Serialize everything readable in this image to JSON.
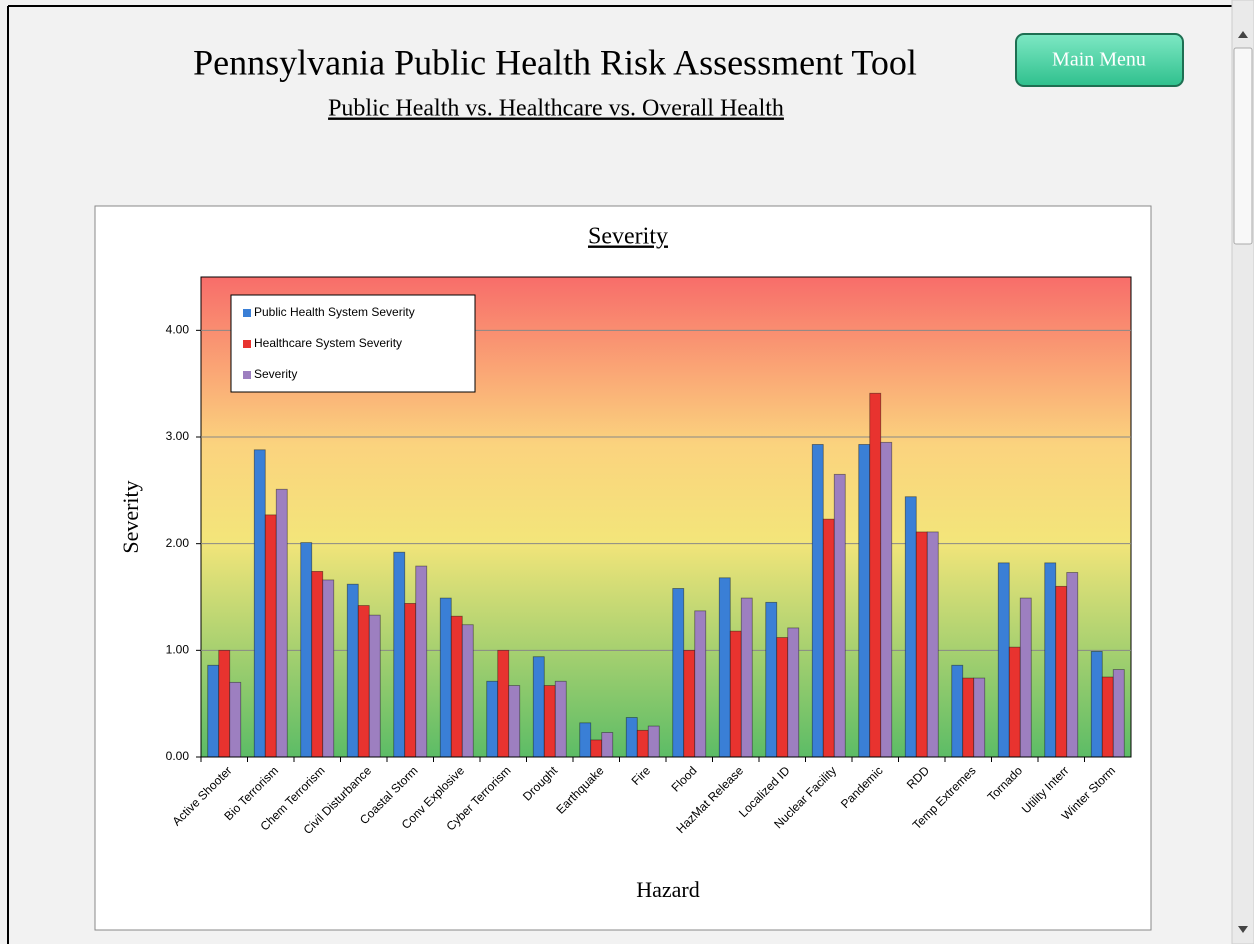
{
  "header": {
    "title": "Pennsylvania Public Health Risk Assessment Tool",
    "subtitle": "Public Health vs. Healthcare vs. Overall Health",
    "button": "Main Menu"
  },
  "chart_data": {
    "type": "bar",
    "title": "Severity",
    "x_label": "Hazard",
    "y_label": "Severity",
    "categories": [
      "Active Shooter",
      "Bio Terrorism",
      "Chem Terrorism",
      "Civil Disturbance",
      "Coastal Storm",
      "Conv Explosive",
      "Cyber Terrorism",
      "Drought",
      "Earthquake",
      "Fire",
      "Flood",
      "HazMat Release",
      "Localized ID",
      "Nuclear Facility",
      "Pandemic",
      "RDD",
      "Temp Extremes",
      "Tornado",
      "Utility Interr",
      "Winter Storm"
    ],
    "series": [
      {
        "name": "Public Health System Severity",
        "color": "#3a7fd6",
        "values": [
          0.86,
          2.88,
          2.01,
          1.62,
          1.92,
          1.49,
          0.71,
          0.94,
          0.32,
          0.37,
          1.58,
          1.68,
          1.45,
          2.93,
          2.93,
          2.44,
          0.86,
          1.82,
          1.82,
          0.99
        ]
      },
      {
        "name": "Healthcare System Severity",
        "color": "#e8332f",
        "values": [
          1.0,
          2.27,
          1.74,
          1.42,
          1.44,
          1.32,
          1.0,
          0.67,
          0.16,
          0.25,
          1.0,
          1.18,
          1.12,
          2.23,
          3.41,
          2.11,
          0.74,
          1.03,
          1.6,
          0.75
        ]
      },
      {
        "name": "Severity",
        "color": "#9d7fc0",
        "values": [
          0.7,
          2.51,
          1.66,
          1.33,
          1.79,
          1.24,
          0.67,
          0.71,
          0.23,
          0.29,
          1.37,
          1.49,
          1.21,
          2.65,
          2.95,
          2.11,
          0.74,
          1.49,
          1.73,
          0.82
        ]
      }
    ],
    "ylim": [
      0,
      4.5
    ],
    "yticks": [
      {
        "value": 0,
        "label": "0.00"
      },
      {
        "value": 1,
        "label": "1.00"
      },
      {
        "value": 2,
        "label": "2.00"
      },
      {
        "value": 3,
        "label": "3.00"
      },
      {
        "value": 4,
        "label": "4.00"
      }
    ],
    "grid": true,
    "legend": "upper left"
  }
}
